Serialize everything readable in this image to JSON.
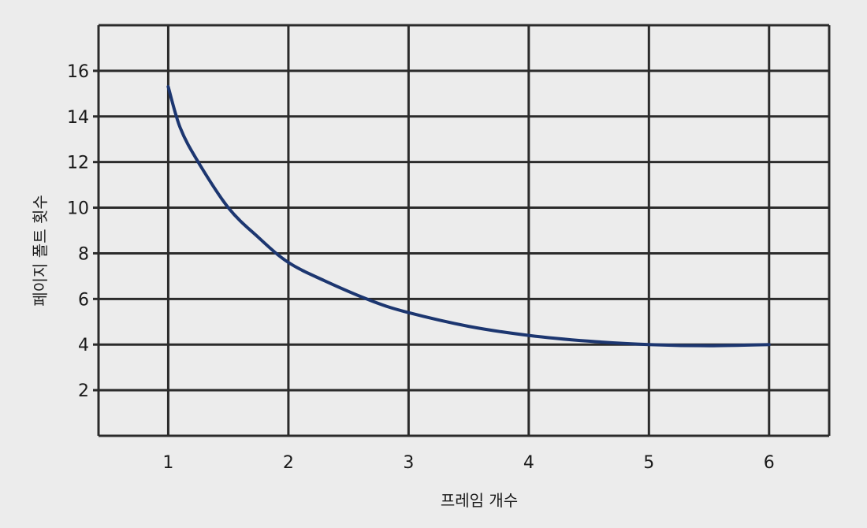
{
  "chart_data": {
    "type": "line",
    "title": "",
    "xlabel": "프레임 개수",
    "ylabel": "페이지 폴트 횟수",
    "xlim": [
      0.42,
      6.5
    ],
    "ylim": [
      0,
      18
    ],
    "x_ticks": [
      1,
      2,
      3,
      4,
      5,
      6
    ],
    "x_tick_labels": [
      "1",
      "2",
      "3",
      "4",
      "5",
      "6"
    ],
    "y_ticks": [
      2,
      4,
      6,
      8,
      10,
      12,
      14,
      16
    ],
    "y_tick_labels": [
      "2",
      "4",
      "6",
      "8",
      "10",
      "12",
      "14",
      "16"
    ],
    "x_grid": [
      0.42,
      1,
      2,
      3,
      4,
      5,
      6,
      6.5
    ],
    "y_grid": [
      0,
      2,
      4,
      6,
      8,
      10,
      12,
      14,
      16,
      18
    ],
    "grid": true,
    "legend": "none",
    "colors": {
      "line": "#1c3670",
      "grid": "#2b2b2b",
      "background": "#ececec"
    },
    "series": [
      {
        "values": [
          [
            1.0,
            15.3
          ],
          [
            1.1,
            13.5
          ],
          [
            1.25,
            12.0
          ],
          [
            1.5,
            10.0
          ],
          [
            1.75,
            8.7
          ],
          [
            2.0,
            7.6
          ],
          [
            2.3,
            6.8
          ],
          [
            2.7,
            5.9
          ],
          [
            3.0,
            5.4
          ],
          [
            3.5,
            4.8
          ],
          [
            4.0,
            4.4
          ],
          [
            4.5,
            4.15
          ],
          [
            5.0,
            4.0
          ],
          [
            5.5,
            3.95
          ],
          [
            6.0,
            4.0
          ]
        ]
      }
    ]
  }
}
